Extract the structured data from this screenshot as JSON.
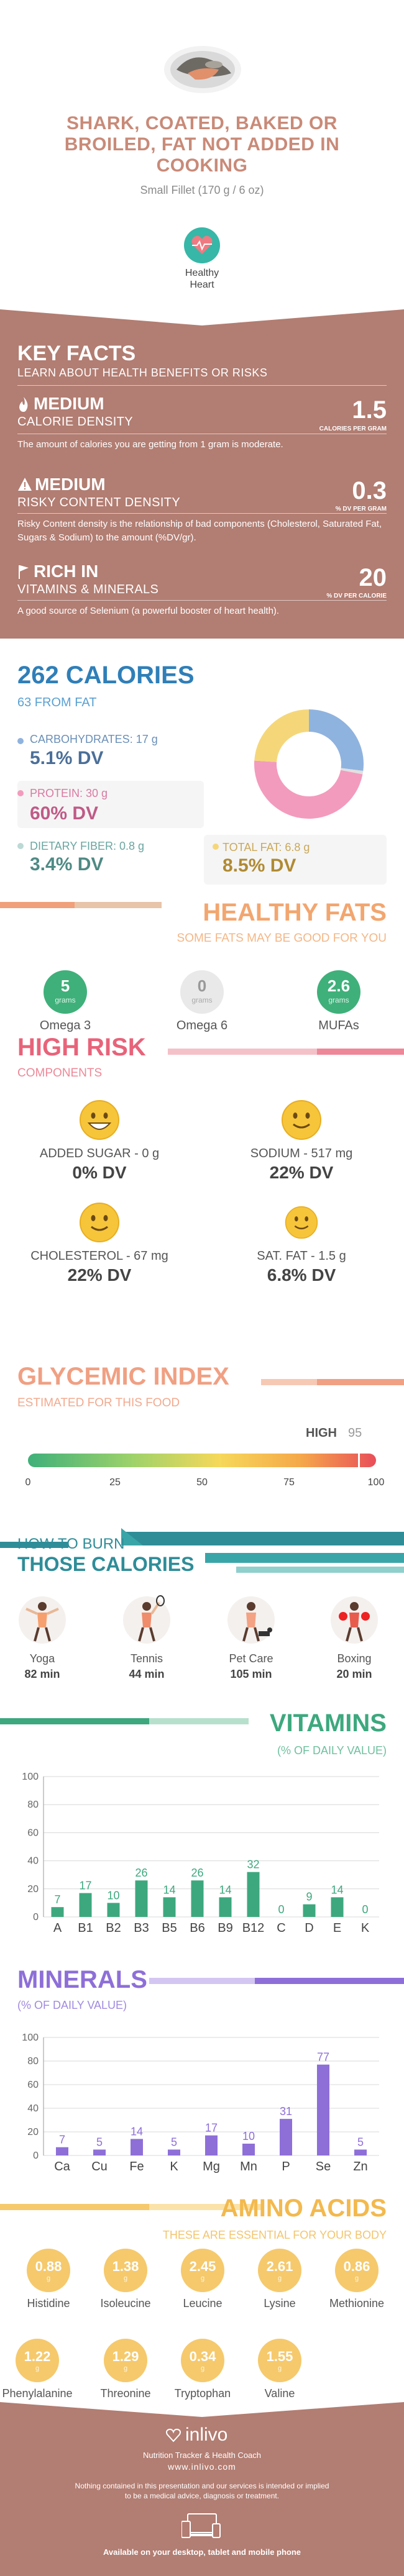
{
  "header": {
    "title_lines": [
      "SHARK, COATED, BAKED OR",
      "BROILED, FAT NOT ADDED IN",
      "COOKING"
    ],
    "serving": "Small Fillet (170 g / 6 oz)",
    "badge_label_1": "Healthy",
    "badge_label_2": "Heart"
  },
  "key_facts": {
    "title": "KEY FACTS",
    "subtitle": "LEARN ABOUT HEALTH BENEFITS OR RISKS",
    "rows": [
      {
        "level": "MEDIUM",
        "name": "CALORIE DENSITY",
        "value": "1.5",
        "unit": "CALORIES PER GRAM",
        "desc": "The amount of calories you are getting from 1 gram is moderate."
      },
      {
        "level": "MEDIUM",
        "name": "RISKY CONTENT DENSITY",
        "value": "0.3",
        "unit": "% DV PER GRAM",
        "desc": "Risky Content density is the relationship of bad components (Cholesterol, Saturated Fat, Sugars & Sodium) to the amount (%DV/gr)."
      },
      {
        "level": "RICH  IN",
        "name": "VITAMINS & MINERALS",
        "value": "20",
        "unit": "% DV PER CALORIE",
        "desc": "A good source of Selenium (a powerful booster of heart health)."
      }
    ]
  },
  "calories": {
    "title": "262 CALORIES",
    "subtitle": "63 FROM FAT",
    "carbs_label": "CARBOHYDRATES: 17 g",
    "carbs_dv": "5.1% DV",
    "protein_label": "PROTEIN: 30 g",
    "protein_dv": "60% DV",
    "fiber_label": "DIETARY FIBER: 0.8 g",
    "fiber_dv": "3.4% DV",
    "fat_label": "TOTAL FAT: 6.8 g",
    "fat_dv": "8.5% DV",
    "donut": [
      {
        "name": "carbs",
        "value": 27,
        "color": "#8fb3df"
      },
      {
        "name": "fiber",
        "value": 1,
        "color": "#e0e0e0"
      },
      {
        "name": "protein",
        "value": 48,
        "color": "#f39bbd"
      },
      {
        "name": "fat",
        "value": 24,
        "color": "#f5d77a"
      }
    ]
  },
  "healthy_fats": {
    "title": "HEALTHY FATS",
    "subtitle": "SOME FATS MAY BE GOOD FOR YOU",
    "items": [
      {
        "value": "5",
        "unit": "grams",
        "name": "Omega 3",
        "color": "#3fb07a"
      },
      {
        "value": "0",
        "unit": "grams",
        "name": "Omega 6",
        "color": "#e9e9e9"
      },
      {
        "value": "2.6",
        "unit": "grams",
        "name": "MUFAs",
        "color": "#3fb07a"
      }
    ]
  },
  "high_risk": {
    "title": "HIGH RISK",
    "subtitle": "COMPONENTS",
    "items": [
      {
        "label": "ADDED SUGAR - 0 g",
        "dv": "0% DV"
      },
      {
        "label": "SODIUM - 517 mg",
        "dv": "22% DV"
      },
      {
        "label": "CHOLESTEROL - 67 mg",
        "dv": "22% DV"
      },
      {
        "label": "SAT. FAT - 1.5 g",
        "dv": "6.8% DV"
      }
    ]
  },
  "glycemic": {
    "title": "GLYCEMIC INDEX",
    "subtitle": "ESTIMATED FOR THIS FOOD",
    "level": "HIGH",
    "value": "95",
    "value_num": 95,
    "ticks": [
      "0",
      "25",
      "50",
      "75",
      "100"
    ]
  },
  "burn": {
    "title_1": "HOW TO BURN",
    "title_2": "THOSE CALORIES",
    "activities": [
      {
        "name": "Yoga",
        "time": "82 min"
      },
      {
        "name": "Tennis",
        "time": "44 min"
      },
      {
        "name": "Pet Care",
        "time": "105 min"
      },
      {
        "name": "Boxing",
        "time": "20 min"
      }
    ]
  },
  "vitamins": {
    "title": "VITAMINS",
    "subtitle": "(% OF DAILY VALUE)",
    "color": "#3da87e",
    "chart_data": {
      "type": "bar",
      "categories": [
        "A",
        "B1",
        "B2",
        "B3",
        "B5",
        "B6",
        "B9",
        "B12",
        "C",
        "D",
        "E",
        "K"
      ],
      "values": [
        7,
        17,
        10,
        26,
        14,
        26,
        14,
        32,
        0,
        9,
        14,
        0
      ],
      "ylim": [
        0,
        100
      ],
      "yticks": [
        "0",
        "20",
        "40",
        "60",
        "80",
        "100"
      ]
    }
  },
  "minerals": {
    "title": "MINERALS",
    "subtitle": "(% OF DAILY VALUE)",
    "color": "#8e6fd8",
    "chart_data": {
      "type": "bar",
      "categories": [
        "Ca",
        "Cu",
        "Fe",
        "K",
        "Mg",
        "Mn",
        "P",
        "Se",
        "Zn"
      ],
      "values": [
        7,
        5,
        14,
        5,
        17,
        10,
        31,
        77,
        5
      ],
      "ylim": [
        0,
        100
      ],
      "yticks": [
        "0",
        "20",
        "40",
        "60",
        "80",
        "100"
      ]
    }
  },
  "amino": {
    "title": "AMINO ACIDS",
    "subtitle": "THESE ARE ESSENTIAL FOR YOUR BODY",
    "row1": [
      {
        "value": "0.88",
        "unit": "g",
        "name": "Histidine"
      },
      {
        "value": "1.38",
        "unit": "g",
        "name": "Isoleucine"
      },
      {
        "value": "2.45",
        "unit": "g",
        "name": "Leucine"
      },
      {
        "value": "2.61",
        "unit": "g",
        "name": "Lysine"
      },
      {
        "value": "0.86",
        "unit": "g",
        "name": "Methionine"
      }
    ],
    "row2": [
      {
        "value": "1.22",
        "unit": "g",
        "name": "Phenylalanine"
      },
      {
        "value": "1.29",
        "unit": "g",
        "name": "Threonine"
      },
      {
        "value": "0.34",
        "unit": "g",
        "name": "Tryptophan"
      },
      {
        "value": "1.55",
        "unit": "g",
        "name": "Valine"
      }
    ]
  },
  "footer": {
    "brand": "inlivo",
    "tagline": "Nutrition Tracker & Health Coach",
    "url": "www.inlivo.com",
    "disclaimer_1": "Nothing contained in this presentation and our services is intended or implied",
    "disclaimer_2": "to be a medical advice, diagnosis or treatment.",
    "available": "Available on your desktop, tablet and mobile phone"
  }
}
